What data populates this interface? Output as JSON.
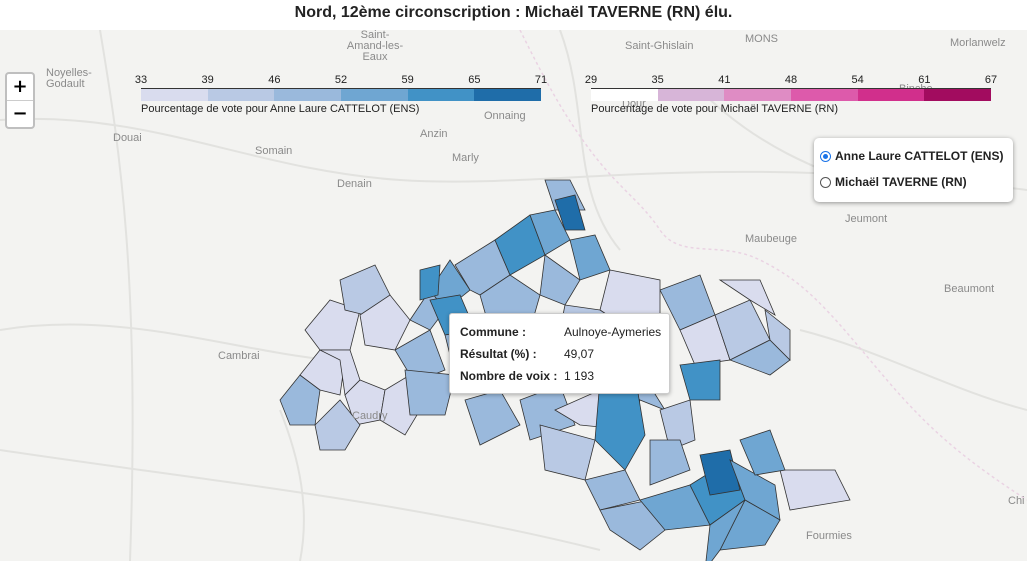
{
  "title": "Nord, 12ème circonscription : Michaël TAVERNE (RN) élu.",
  "zoom": {
    "in_label": "+",
    "out_label": "−"
  },
  "legend_ens": {
    "ticks": [
      "33",
      "39",
      "46",
      "52",
      "59",
      "65",
      "71"
    ],
    "caption": "Pourcentage de vote pour Anne Laure CATTELOT (ENS)",
    "colors": [
      "#d9dcee",
      "#b9c9e4",
      "#9ab9dc",
      "#6fa6d2",
      "#4192c6",
      "#1f6da9"
    ]
  },
  "legend_rn": {
    "ticks": [
      "29",
      "35",
      "41",
      "48",
      "54",
      "61",
      "67"
    ],
    "caption": "Pourcentage de vote pour Michaël TAVERNE (RN)",
    "colors": [
      "#ffffff",
      "#d7b5d8",
      "#df8cc4",
      "#dd5aab",
      "#d12f8c",
      "#a20c5f"
    ]
  },
  "layers": [
    {
      "label": "Anne Laure CATTELOT (ENS)",
      "checked": true
    },
    {
      "label": "Michaël TAVERNE (RN)",
      "checked": false
    }
  ],
  "tooltip": {
    "rows": [
      {
        "key": "Commune :",
        "value": "Aulnoye-Aymeries"
      },
      {
        "key": "Résultat (%) :",
        "value": "49,07"
      },
      {
        "key": "Nombre de voix :",
        "value": "1 193"
      }
    ]
  },
  "basemap_labels": [
    "Noyelles-Godault",
    "Douai",
    "Somain",
    "Saint-Amand-les-Eaux",
    "Anzin",
    "Marly",
    "Denain",
    "Onnaing",
    "Cambrai",
    "Caudry",
    "Saint-Ghislain",
    "MONS",
    "Dour",
    "Binche",
    "Maubeuge",
    "Jeumont",
    "Beaumont",
    "Fourmies",
    "Morlanwelz",
    "Chi"
  ]
}
